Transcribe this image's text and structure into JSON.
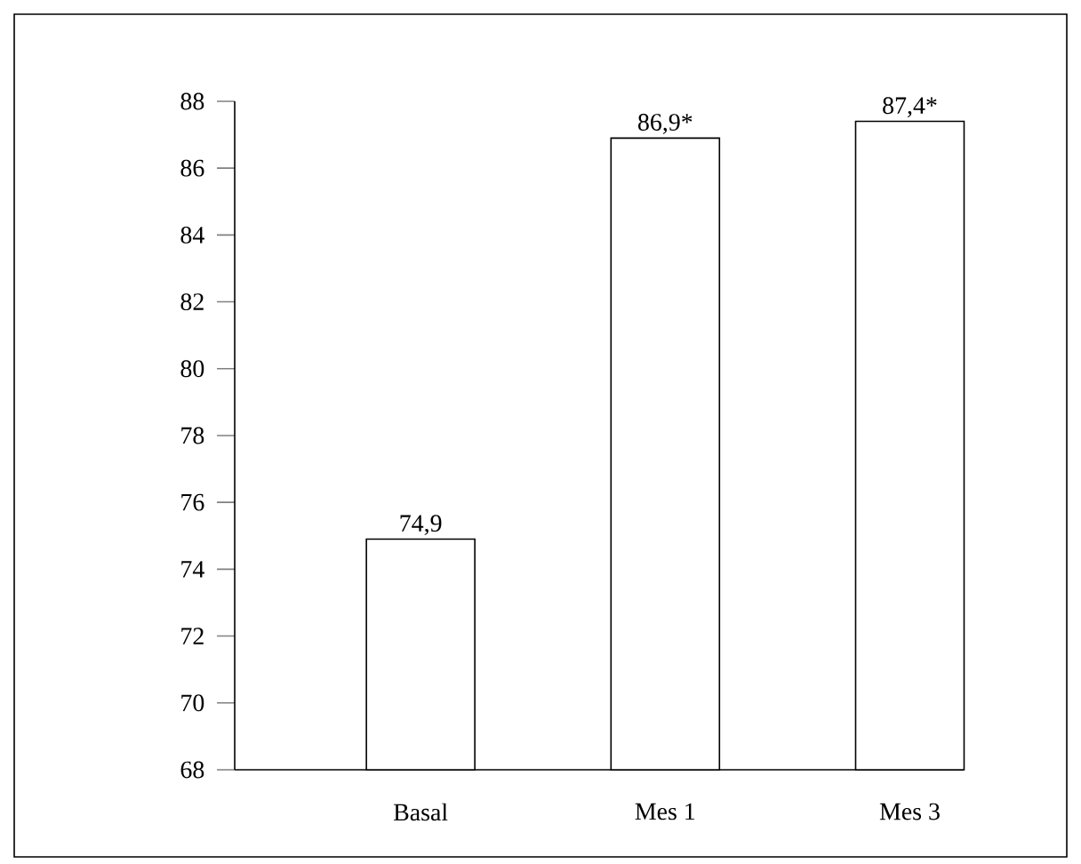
{
  "chart_data": {
    "type": "bar",
    "categories": [
      "Basal",
      "Mes 1",
      "Mes 3"
    ],
    "values": [
      74.9,
      86.9,
      87.4
    ],
    "value_labels": [
      "74,9",
      "86,9*",
      "87,4*"
    ],
    "color": "#ffffff",
    "ylim": [
      68,
      88
    ],
    "yticks": [
      68,
      70,
      72,
      74,
      76,
      78,
      80,
      82,
      84,
      86,
      88
    ]
  }
}
